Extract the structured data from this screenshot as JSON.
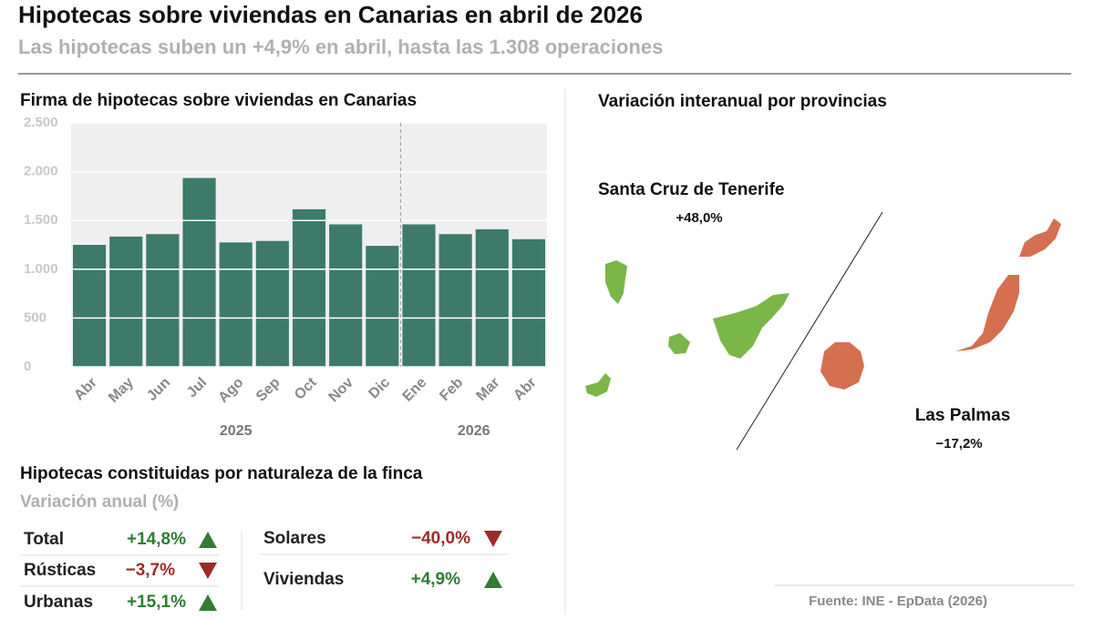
{
  "header": {
    "title": "Hipotecas sobre viviendas en Canarias en abril de 2026",
    "subtitle": "Las hipotecas suben un +4,9% en abril, hasta las 1.308 operaciones"
  },
  "chart_data": {
    "type": "bar",
    "title": "Firma de hipotecas sobre viviendas en Canarias",
    "categories": [
      "Abr",
      "May",
      "Jun",
      "Jul",
      "Ago",
      "Sep",
      "Oct",
      "Nov",
      "Dic",
      "Ene",
      "Feb",
      "Mar",
      "Abr"
    ],
    "values": [
      1250,
      1335,
      1360,
      1935,
      1275,
      1290,
      1615,
      1460,
      1240,
      1460,
      1360,
      1410,
      1308
    ],
    "color": "#3d7a6a",
    "groups": [
      {
        "label": "2025",
        "start": 0,
        "end": 8
      },
      {
        "label": "2026",
        "start": 9,
        "end": 12
      }
    ],
    "ylim": [
      0,
      2500
    ],
    "yticks": [
      0,
      500,
      {
        "value": 1000,
        "label": "1.000"
      },
      {
        "value": 1500,
        "label": "1.500"
      },
      {
        "value": 2000,
        "label": "2.000"
      },
      {
        "value": 2500,
        "label": "2.500"
      }
    ],
    "grid": true
  },
  "map": {
    "title": "Variación interanual por provincias",
    "provinces": [
      {
        "name": "Santa Cruz de Tenerife",
        "value": "+48,0%",
        "color": "#7ab648"
      },
      {
        "name": "Las Palmas",
        "value": "−17,2%",
        "color": "#d4704f"
      }
    ]
  },
  "table": {
    "title": "Hipotecas constituidas por naturaleza de la finca",
    "subtitle": "Variación anual (%)",
    "rows": [
      [
        "Total",
        "+14,8%",
        "up"
      ],
      [
        "Rústicas",
        "−3,7%",
        "down"
      ],
      [
        "Urbanas",
        "+15,1%",
        "up"
      ],
      [
        "Solares",
        "−40,0%",
        "down"
      ],
      [
        "Viviendas",
        "+4,9%",
        "up"
      ]
    ]
  },
  "source": "Fuente: INE - EpData (2026)"
}
